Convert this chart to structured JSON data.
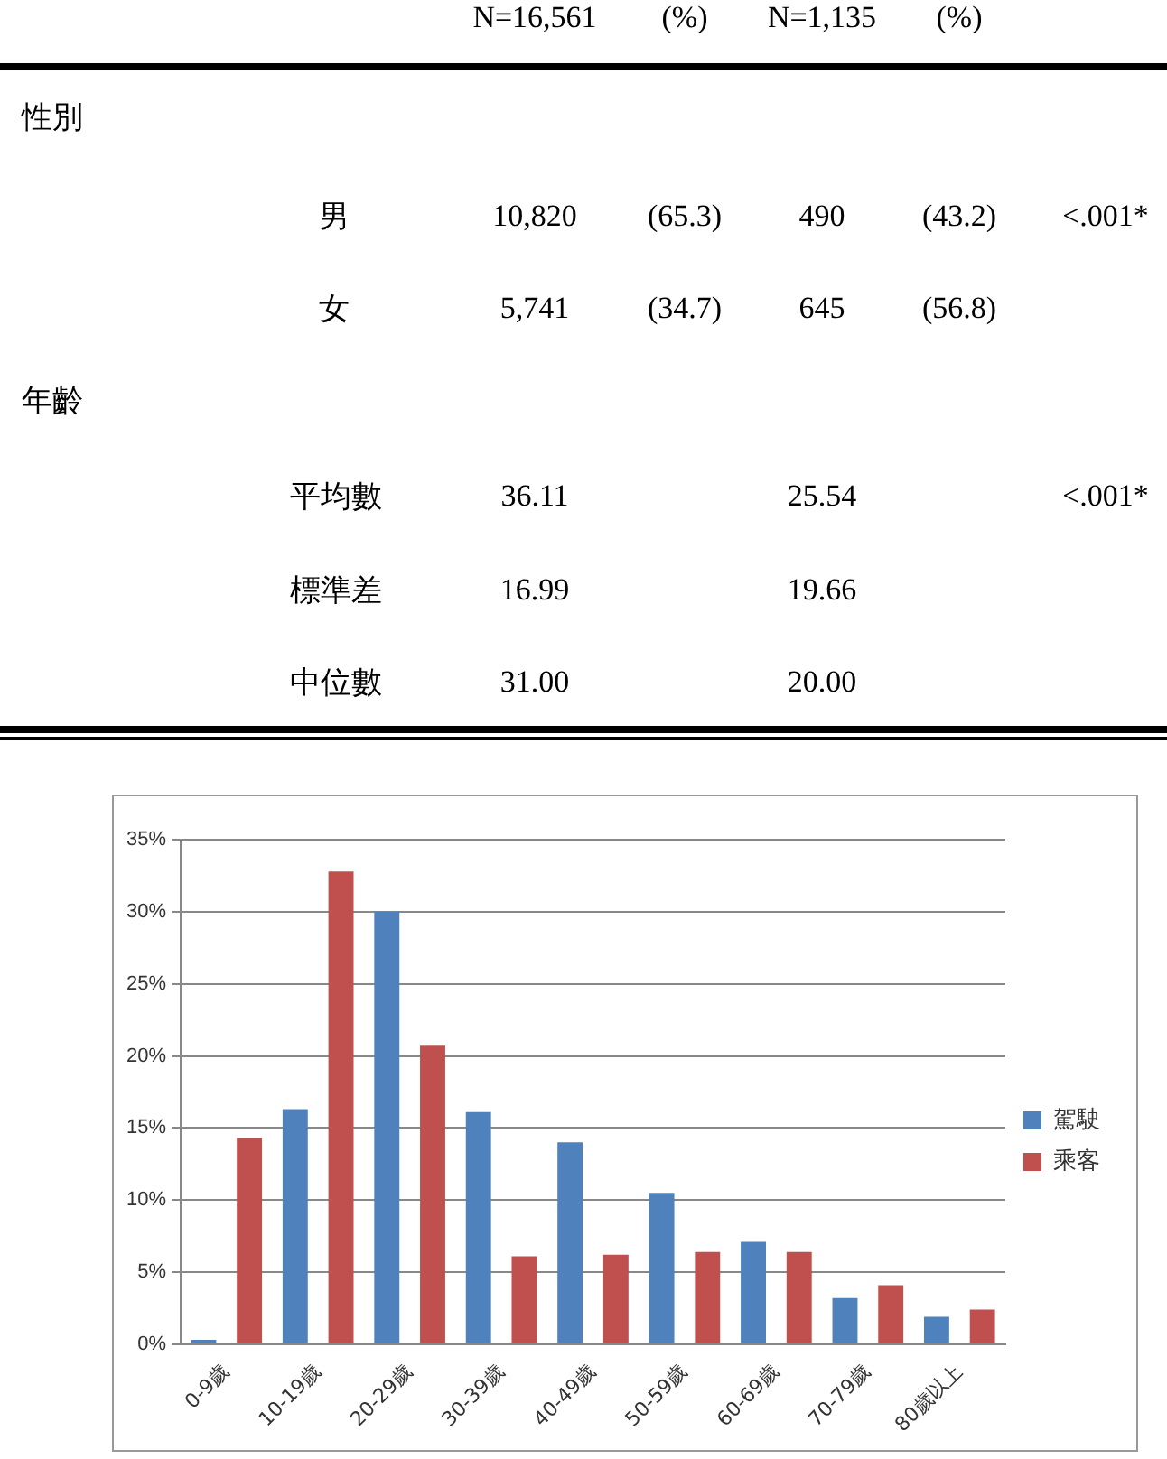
{
  "chart_data": [
    {
      "type": "other",
      "annotations": [
        "N=16,561",
        "(%)",
        "N=1,135",
        "(%)",
        "性別",
        "男",
        "10,820",
        "(65.3)",
        "490",
        "(43.2)",
        "<.001*",
        "女",
        "5,741",
        "(34.7)",
        "645",
        "(56.8)",
        "年齡",
        "平均數",
        "36.11",
        "25.54",
        "<.001*",
        "標準差",
        "16.99",
        "19.66",
        "中位數",
        "31.00",
        "20.00"
      ]
    },
    {
      "type": "bar",
      "categories": [
        "0-9歲",
        "10-19歲",
        "20-29歲",
        "30-39歲",
        "40-49歲",
        "50-59歲",
        "60-69歲",
        "70-79歲",
        "80歲以上"
      ],
      "series": [
        {
          "name": "駕駛",
          "color": "#4f81bd",
          "values": [
            0.3,
            16.3,
            30.0,
            16.1,
            14.0,
            10.5,
            7.1,
            3.2,
            1.9
          ]
        },
        {
          "name": "乘客",
          "color": "#c0504d",
          "values": [
            14.3,
            32.8,
            20.7,
            6.1,
            6.2,
            6.4,
            6.4,
            4.1,
            2.4
          ]
        }
      ],
      "ylim": [
        0,
        35
      ],
      "yticks": [
        {
          "value": 0,
          "label": "0%"
        },
        {
          "value": 5,
          "label": "5%"
        },
        {
          "value": 10,
          "label": "10%"
        },
        {
          "value": 15,
          "label": "15%"
        },
        {
          "value": 20,
          "label": "20%"
        },
        {
          "value": 25,
          "label": "25%"
        },
        {
          "value": 30,
          "label": "30%"
        },
        {
          "value": 35,
          "label": "35%"
        }
      ],
      "grid": "y",
      "legend": "right"
    }
  ]
}
